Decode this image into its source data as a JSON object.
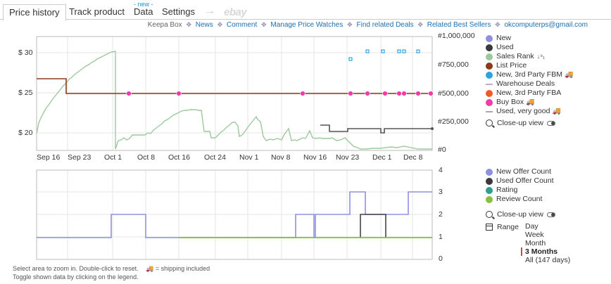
{
  "tabs": {
    "price_history": "Price history",
    "track_product": "Track product",
    "data": "Data",
    "data_badge": "- new -",
    "settings": "Settings",
    "arrow": "→",
    "ebay": "ebay"
  },
  "links": {
    "keepa_box": "Keepa Box",
    "news": "News",
    "comment": "Comment",
    "manage_watches": "Manage Price Watches",
    "find_deals": "Find related Deals",
    "best_sellers": "Related Best Sellers",
    "email": "okcomputerps@gmail.com",
    "separator": "✥"
  },
  "main_chart": {
    "y_left_ticks": [
      "$ 30",
      "$ 25",
      "$ 20"
    ],
    "y_right_ticks": [
      "#1,000,000",
      "#750,000",
      "#500,000",
      "#250,000",
      "#0"
    ],
    "x_ticks": [
      "Sep 16",
      "Sep 23",
      "Oct 1",
      "Oct 8",
      "Oct 16",
      "Oct 24",
      "Nov 1",
      "Nov 8",
      "Nov 16",
      "Nov 23",
      "Dec 1",
      "Dec 8"
    ]
  },
  "lower_chart": {
    "y_right_ticks": [
      "4",
      "3",
      "2",
      "1",
      "0"
    ]
  },
  "main_legend": [
    {
      "label": "New",
      "color": "#8f8fe0",
      "shape": "dot"
    },
    {
      "label": "Used",
      "color": "#3a3a3a",
      "shape": "dot"
    },
    {
      "label": "Sales Rank",
      "color": "#9cc99c",
      "shape": "dot",
      "suffix": "↓⁹₁"
    },
    {
      "label": "List Price",
      "color": "#8b3a1a",
      "shape": "dot"
    },
    {
      "label": "New, 3rd Party FBM",
      "color": "#2ea2e0",
      "shape": "dot",
      "truck": "🚚"
    },
    {
      "label": "Warehouse Deals",
      "color": "#c9a8d6",
      "shape": "dash"
    },
    {
      "label": "New, 3rd Party FBA",
      "color": "#f05a28",
      "shape": "dot"
    },
    {
      "label": "Buy Box",
      "color": "#ee3ea5",
      "shape": "dot",
      "truck": "🚚"
    },
    {
      "label": "Used, very good",
      "color": "#a8a8a8",
      "shape": "dash",
      "truck": "🚚"
    }
  ],
  "close_up_view": "Close-up view",
  "lower_legend": [
    {
      "label": "New Offer Count",
      "color": "#8f8fe0"
    },
    {
      "label": "Used Offer Count",
      "color": "#3a3a3a"
    },
    {
      "label": "Rating",
      "color": "#2f9e8f"
    },
    {
      "label": "Review Count",
      "color": "#88c03a"
    }
  ],
  "range": {
    "label": "Range",
    "options": [
      "Day",
      "Week",
      "Month",
      "3 Months",
      "All (147 days)"
    ],
    "selected": "3 Months"
  },
  "footer": {
    "line1": "Select area to zoom in. Double-click to reset.",
    "truck_icon": "🚚",
    "shipping": "= shipping included",
    "line2": "Toggle shown data by clicking on the legend."
  },
  "colors": {
    "new": "#8f8fe0",
    "used": "#3a3a3a",
    "sales_rank": "#9cc99c",
    "list_price": "#8b3a1a",
    "fbm": "#2ea2e0",
    "buy_box": "#ee3ea5",
    "review_count": "#88c03a"
  }
}
